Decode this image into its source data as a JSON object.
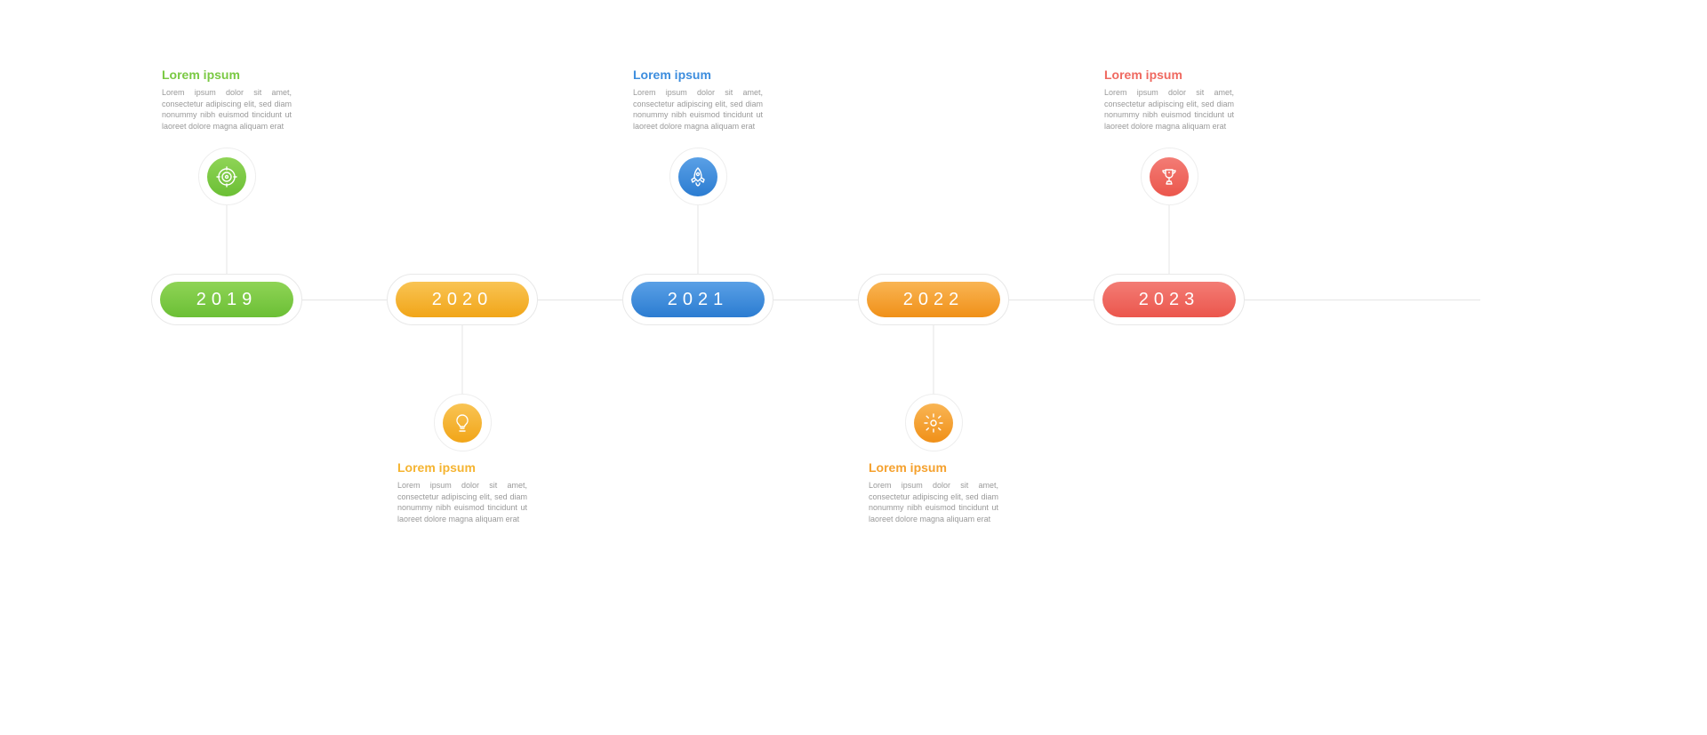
{
  "type": "infographic",
  "layout": "horizontal-timeline",
  "background_color": "#ffffff",
  "connector_color": "#e5e5e5",
  "node_border_color": "#e8e8e8",
  "body_text_color": "#999999",
  "year_label_fontsize": 20,
  "year_label_letter_spacing": 6,
  "title_fontsize": 14,
  "body_fontsize": 9,
  "pill_width": 150,
  "pill_height": 40,
  "node_outer_width": 170,
  "node_outer_height": 58,
  "icon_outer_diameter": 65,
  "icon_inner_diameter": 44,
  "step_spacing": 265,
  "steps": [
    {
      "year": "2019",
      "title": "Lorem ipsum",
      "body": "Lorem ipsum dolor sit amet, consectetur adipiscing elit, sed diam nonummy nibh euismod tincidunt ut laoreet dolore magna aliquam erat",
      "color": "#7ac943",
      "gradient_from": "#8fd456",
      "gradient_to": "#6bbf35",
      "position": "top",
      "icon": "target"
    },
    {
      "year": "2020",
      "title": "Lorem ipsum",
      "body": "Lorem ipsum dolor sit amet, consectetur adipiscing elit, sed diam nonummy nibh euismod tincidunt ut laoreet dolore magna aliquam erat",
      "color": "#f5b431",
      "gradient_from": "#f9c454",
      "gradient_to": "#f1a518",
      "position": "bottom",
      "icon": "bulb"
    },
    {
      "year": "2021",
      "title": "Lorem ipsum",
      "body": "Lorem ipsum dolor sit amet, consectetur adipiscing elit, sed diam nonummy nibh euismod tincidunt ut laoreet dolore magna aliquam erat",
      "color": "#3c8dde",
      "gradient_from": "#5aa0e6",
      "gradient_to": "#2b7cd1",
      "position": "top",
      "icon": "rocket"
    },
    {
      "year": "2022",
      "title": "Lorem ipsum",
      "body": "Lorem ipsum dolor sit amet, consectetur adipiscing elit, sed diam nonummy nibh euismod tincidunt ut laoreet dolore magna aliquam erat",
      "color": "#f5a12e",
      "gradient_from": "#f9b554",
      "gradient_to": "#f09018",
      "position": "bottom",
      "icon": "gear"
    },
    {
      "year": "2023",
      "title": "Lorem ipsum",
      "body": "Lorem ipsum dolor sit amet, consectetur adipiscing elit, sed diam nonummy nibh euismod tincidunt ut laoreet dolore magna aliquam erat",
      "color": "#ef6960",
      "gradient_from": "#f37c75",
      "gradient_to": "#eb564c",
      "position": "top",
      "icon": "trophy"
    }
  ]
}
